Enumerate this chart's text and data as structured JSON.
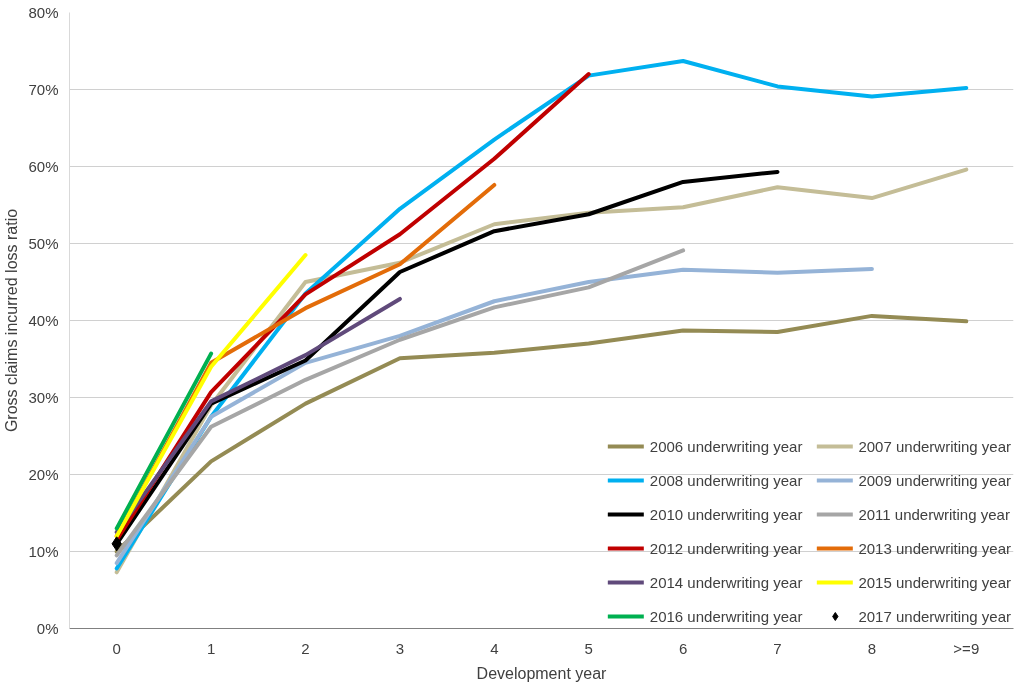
{
  "chart_data": {
    "type": "line",
    "xlabel": "Development year",
    "ylabel": "Gross claims incurred loss ratio",
    "categories": [
      "0",
      "1",
      "2",
      "3",
      "4",
      "5",
      "6",
      "7",
      "8",
      ">=9"
    ],
    "ylim": [
      0,
      80
    ],
    "yticks": [
      {
        "value": 0,
        "label": "0%"
      },
      {
        "value": 10,
        "label": "10%"
      },
      {
        "value": 20,
        "label": "20%"
      },
      {
        "value": 30,
        "label": "30%"
      },
      {
        "value": 40,
        "label": "40%"
      },
      {
        "value": 50,
        "label": "50%"
      },
      {
        "value": 60,
        "label": "60%"
      },
      {
        "value": 70,
        "label": "70%"
      },
      {
        "value": 80,
        "label": "80%"
      }
    ],
    "grid": "y",
    "legend": "bottom right",
    "series": [
      {
        "name": "2006 underwriting year",
        "color": "#948b54",
        "values": [
          10.0,
          21.7,
          29.2,
          35.1,
          35.8,
          37.0,
          38.7,
          38.5,
          40.6,
          39.9
        ]
      },
      {
        "name": "2007 underwriting year",
        "color": "#c4bd97",
        "values": [
          7.3,
          29.0,
          45.0,
          47.5,
          52.5,
          54.0,
          54.7,
          57.3,
          55.9,
          59.6
        ]
      },
      {
        "name": "2008 underwriting year",
        "color": "#00b0f0",
        "values": [
          7.8,
          27.5,
          43.5,
          54.5,
          63.5,
          71.8,
          73.7,
          70.4,
          69.1,
          70.2
        ]
      },
      {
        "name": "2009 underwriting year",
        "color": "#95b3d7",
        "values": [
          8.5,
          27.5,
          34.5,
          38.0,
          42.5,
          45.0,
          46.6,
          46.2,
          46.7,
          null
        ]
      },
      {
        "name": "2010 underwriting year",
        "color": "#000000",
        "values": [
          11.0,
          29.2,
          34.8,
          46.3,
          51.6,
          53.8,
          58.0,
          59.3,
          null,
          null
        ]
      },
      {
        "name": "2011 underwriting year",
        "color": "#a6a6a6",
        "values": [
          9.5,
          26.2,
          32.3,
          37.5,
          41.7,
          44.3,
          49.1,
          null,
          null,
          null
        ]
      },
      {
        "name": "2012 underwriting year",
        "color": "#c00000",
        "values": [
          11.5,
          30.7,
          43.4,
          51.2,
          61.0,
          72.0,
          null,
          null,
          null,
          null
        ]
      },
      {
        "name": "2013 underwriting year",
        "color": "#e36c09",
        "values": [
          12.0,
          34.5,
          41.6,
          47.3,
          57.6,
          null,
          null,
          null,
          null,
          null
        ]
      },
      {
        "name": "2014 underwriting year",
        "color": "#604a7b",
        "values": [
          12.5,
          29.5,
          35.5,
          42.8,
          null,
          null,
          null,
          null,
          null,
          null
        ]
      },
      {
        "name": "2015 underwriting year",
        "color": "#ffff00",
        "values": [
          12.0,
          34.0,
          48.5,
          null,
          null,
          null,
          null,
          null,
          null,
          null
        ]
      },
      {
        "name": "2016 underwriting year",
        "color": "#00b050",
        "values": [
          13.0,
          35.7,
          null,
          null,
          null,
          null,
          null,
          null,
          null,
          null
        ]
      },
      {
        "name": "2017 underwriting year",
        "color": "#000000",
        "type": "scatter",
        "marker": "diamond",
        "values": [
          11.0,
          null,
          null,
          null,
          null,
          null,
          null,
          null,
          null,
          null
        ]
      }
    ]
  }
}
